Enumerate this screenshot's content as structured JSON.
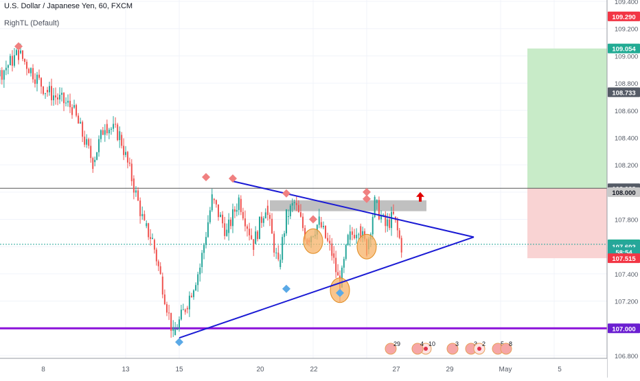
{
  "header": {
    "title": "U.S. Dollar / Japanese Yen, 60, FXCM",
    "indicator": "RighTL (Default)"
  },
  "chart_data": {
    "type": "candlestick",
    "ylim": [
      106.8,
      109.4
    ],
    "price_ticks": [
      "109.400",
      "109.200",
      "109.000",
      "108.800",
      "108.600",
      "108.400",
      "108.200",
      "108.000",
      "107.800",
      "107.600",
      "107.400",
      "107.200",
      "107.000",
      "106.800"
    ],
    "date_ticks": [
      "8",
      "13",
      "15",
      "20",
      "22",
      "27",
      "29",
      "May",
      "5"
    ],
    "price_labels": [
      {
        "text": "109.290",
        "value": 109.29,
        "color": "#f23645"
      },
      {
        "text": "109.054",
        "value": 109.054,
        "color": "#22ab94"
      },
      {
        "text": "108.733",
        "value": 108.733,
        "color": "#555b66"
      },
      {
        "text": "108.028",
        "value": 108.028,
        "color": "#555b66"
      },
      {
        "text": "108.000",
        "value": 108.0,
        "color": "#c9c9c9",
        "text_color": "#131722"
      },
      {
        "text": "107.617",
        "value": 107.617,
        "color": "#22ab94"
      },
      {
        "text": "107.602",
        "value": 107.602,
        "color": "#26a69a"
      },
      {
        "text": "58:54",
        "value": 107.56,
        "color": "#26a69a"
      },
      {
        "text": "107.515",
        "value": 107.515,
        "color": "#f23645"
      },
      {
        "text": "107.000",
        "value": 107.0,
        "color": "#6b1fd1"
      }
    ],
    "horizontal_lines": [
      {
        "value": 108.028,
        "color": "#555555",
        "width": 1
      },
      {
        "value": 107.617,
        "color": "#26a69a",
        "width": 1,
        "dashed": true
      },
      {
        "value": 107.0,
        "color": "#8b12d9",
        "width": 3
      }
    ],
    "trendlines": {
      "color": "#1a1ad4",
      "upper": {
        "from": {
          "date": "Apr 17",
          "price": 108.08
        },
        "to": {
          "date": "Apr 26",
          "price": 107.67
        }
      },
      "lower": {
        "from": {
          "date": "Apr 15",
          "price": 106.93
        },
        "to": {
          "date": "Apr 26",
          "price": 107.67
        }
      }
    },
    "resistance_zone": {
      "from_date": "Apr 19",
      "to_date": "Apr 23",
      "top": 107.94,
      "bottom": 107.86,
      "color": "#b5b5b5"
    },
    "position": {
      "entry": 108.028,
      "target": 109.054,
      "stop": 107.515,
      "from_date": "Apr 28",
      "to_date": "May 3",
      "profit_color": "#c8ebc8",
      "loss_color": "#f9d3d3"
    },
    "highlight_circles": [
      {
        "date": "Apr 20",
        "price": 107.64
      },
      {
        "date": "Apr 21",
        "price": 107.28
      },
      {
        "date": "Apr 22",
        "price": 107.6
      }
    ],
    "arrow": {
      "date": "Apr 24",
      "price": 107.96,
      "direction": "up",
      "color": "#e00000"
    },
    "pivot_high_markers": [
      {
        "date": "Apr 8",
        "price": 109.14
      },
      {
        "date": "Apr 9",
        "price": 109.04
      },
      {
        "date": "Apr 16",
        "price": 108.08
      },
      {
        "date": "Apr 17",
        "price": 108.07
      },
      {
        "date": "Apr 19",
        "price": 107.96
      },
      {
        "date": "Apr 20",
        "price": 107.77
      },
      {
        "date": "Apr 22",
        "price": 107.92
      },
      {
        "date": "Apr 22",
        "price": 107.97
      }
    ],
    "pivot_low_markers": [
      {
        "date": "Apr 7",
        "price": 108.85
      },
      {
        "date": "Apr 8",
        "price": 108.51
      },
      {
        "date": "Apr 15",
        "price": 106.93
      },
      {
        "date": "Apr 19",
        "price": 107.32
      },
      {
        "date": "Apr 21",
        "price": 107.29
      }
    ],
    "price_path": [
      {
        "date": "Apr 6",
        "price": 109.05
      },
      {
        "date": "Apr 7",
        "price": 108.95
      },
      {
        "date": "Apr 7",
        "price": 108.86
      },
      {
        "date": "Apr 8",
        "price": 108.55
      },
      {
        "date": "Apr 8",
        "price": 108.85
      },
      {
        "date": "Apr 9",
        "price": 109.02
      },
      {
        "date": "Apr 10",
        "price": 108.75
      },
      {
        "date": "Apr 11",
        "price": 108.62
      },
      {
        "date": "Apr 12",
        "price": 108.22
      },
      {
        "date": "Apr 12",
        "price": 108.5
      },
      {
        "date": "Apr 13",
        "price": 108.42
      },
      {
        "date": "Apr 13",
        "price": 108.1
      },
      {
        "date": "Apr 14",
        "price": 107.75
      },
      {
        "date": "Apr 14",
        "price": 107.65
      },
      {
        "date": "Apr 14",
        "price": 107.38
      },
      {
        "date": "Apr 15",
        "price": 106.95
      },
      {
        "date": "Apr 15",
        "price": 107.15
      },
      {
        "date": "Apr 16",
        "price": 107.45
      },
      {
        "date": "Apr 16",
        "price": 107.95
      },
      {
        "date": "Apr 17",
        "price": 107.7
      },
      {
        "date": "Apr 17",
        "price": 107.95
      },
      {
        "date": "Apr 18",
        "price": 107.62
      },
      {
        "date": "Apr 18",
        "price": 107.9
      },
      {
        "date": "Apr 19",
        "price": 107.45
      },
      {
        "date": "Apr 19",
        "price": 107.82
      },
      {
        "date": "Apr 19",
        "price": 107.92
      },
      {
        "date": "Apr 20",
        "price": 107.65
      },
      {
        "date": "Apr 20",
        "price": 107.78
      },
      {
        "date": "Apr 21",
        "price": 107.55
      },
      {
        "date": "Apr 21",
        "price": 107.3
      },
      {
        "date": "Apr 21",
        "price": 107.65
      },
      {
        "date": "Apr 22",
        "price": 107.75
      },
      {
        "date": "Apr 22",
        "price": 107.58
      },
      {
        "date": "Apr 22",
        "price": 107.92
      },
      {
        "date": "Apr 23",
        "price": 107.75
      },
      {
        "date": "Apr 23",
        "price": 107.82
      },
      {
        "date": "Apr 23",
        "price": 107.6
      }
    ],
    "event_icons": [
      {
        "date": "Apr 23",
        "text": "29",
        "flag": "us"
      },
      {
        "date": "Apr 24",
        "text": "10",
        "flag": "jp"
      },
      {
        "date": "Apr 24",
        "text": "4",
        "flag": "us"
      },
      {
        "date": "Apr 25",
        "text": "3",
        "flag": "us"
      },
      {
        "date": "Apr 26",
        "text": "3",
        "flag": "us"
      },
      {
        "date": "Apr 26",
        "text": "2",
        "flag": "jp"
      },
      {
        "date": "Apr 27",
        "text": "5",
        "flag": "us"
      },
      {
        "date": "Apr 27",
        "text": "8",
        "flag": "us"
      }
    ]
  }
}
